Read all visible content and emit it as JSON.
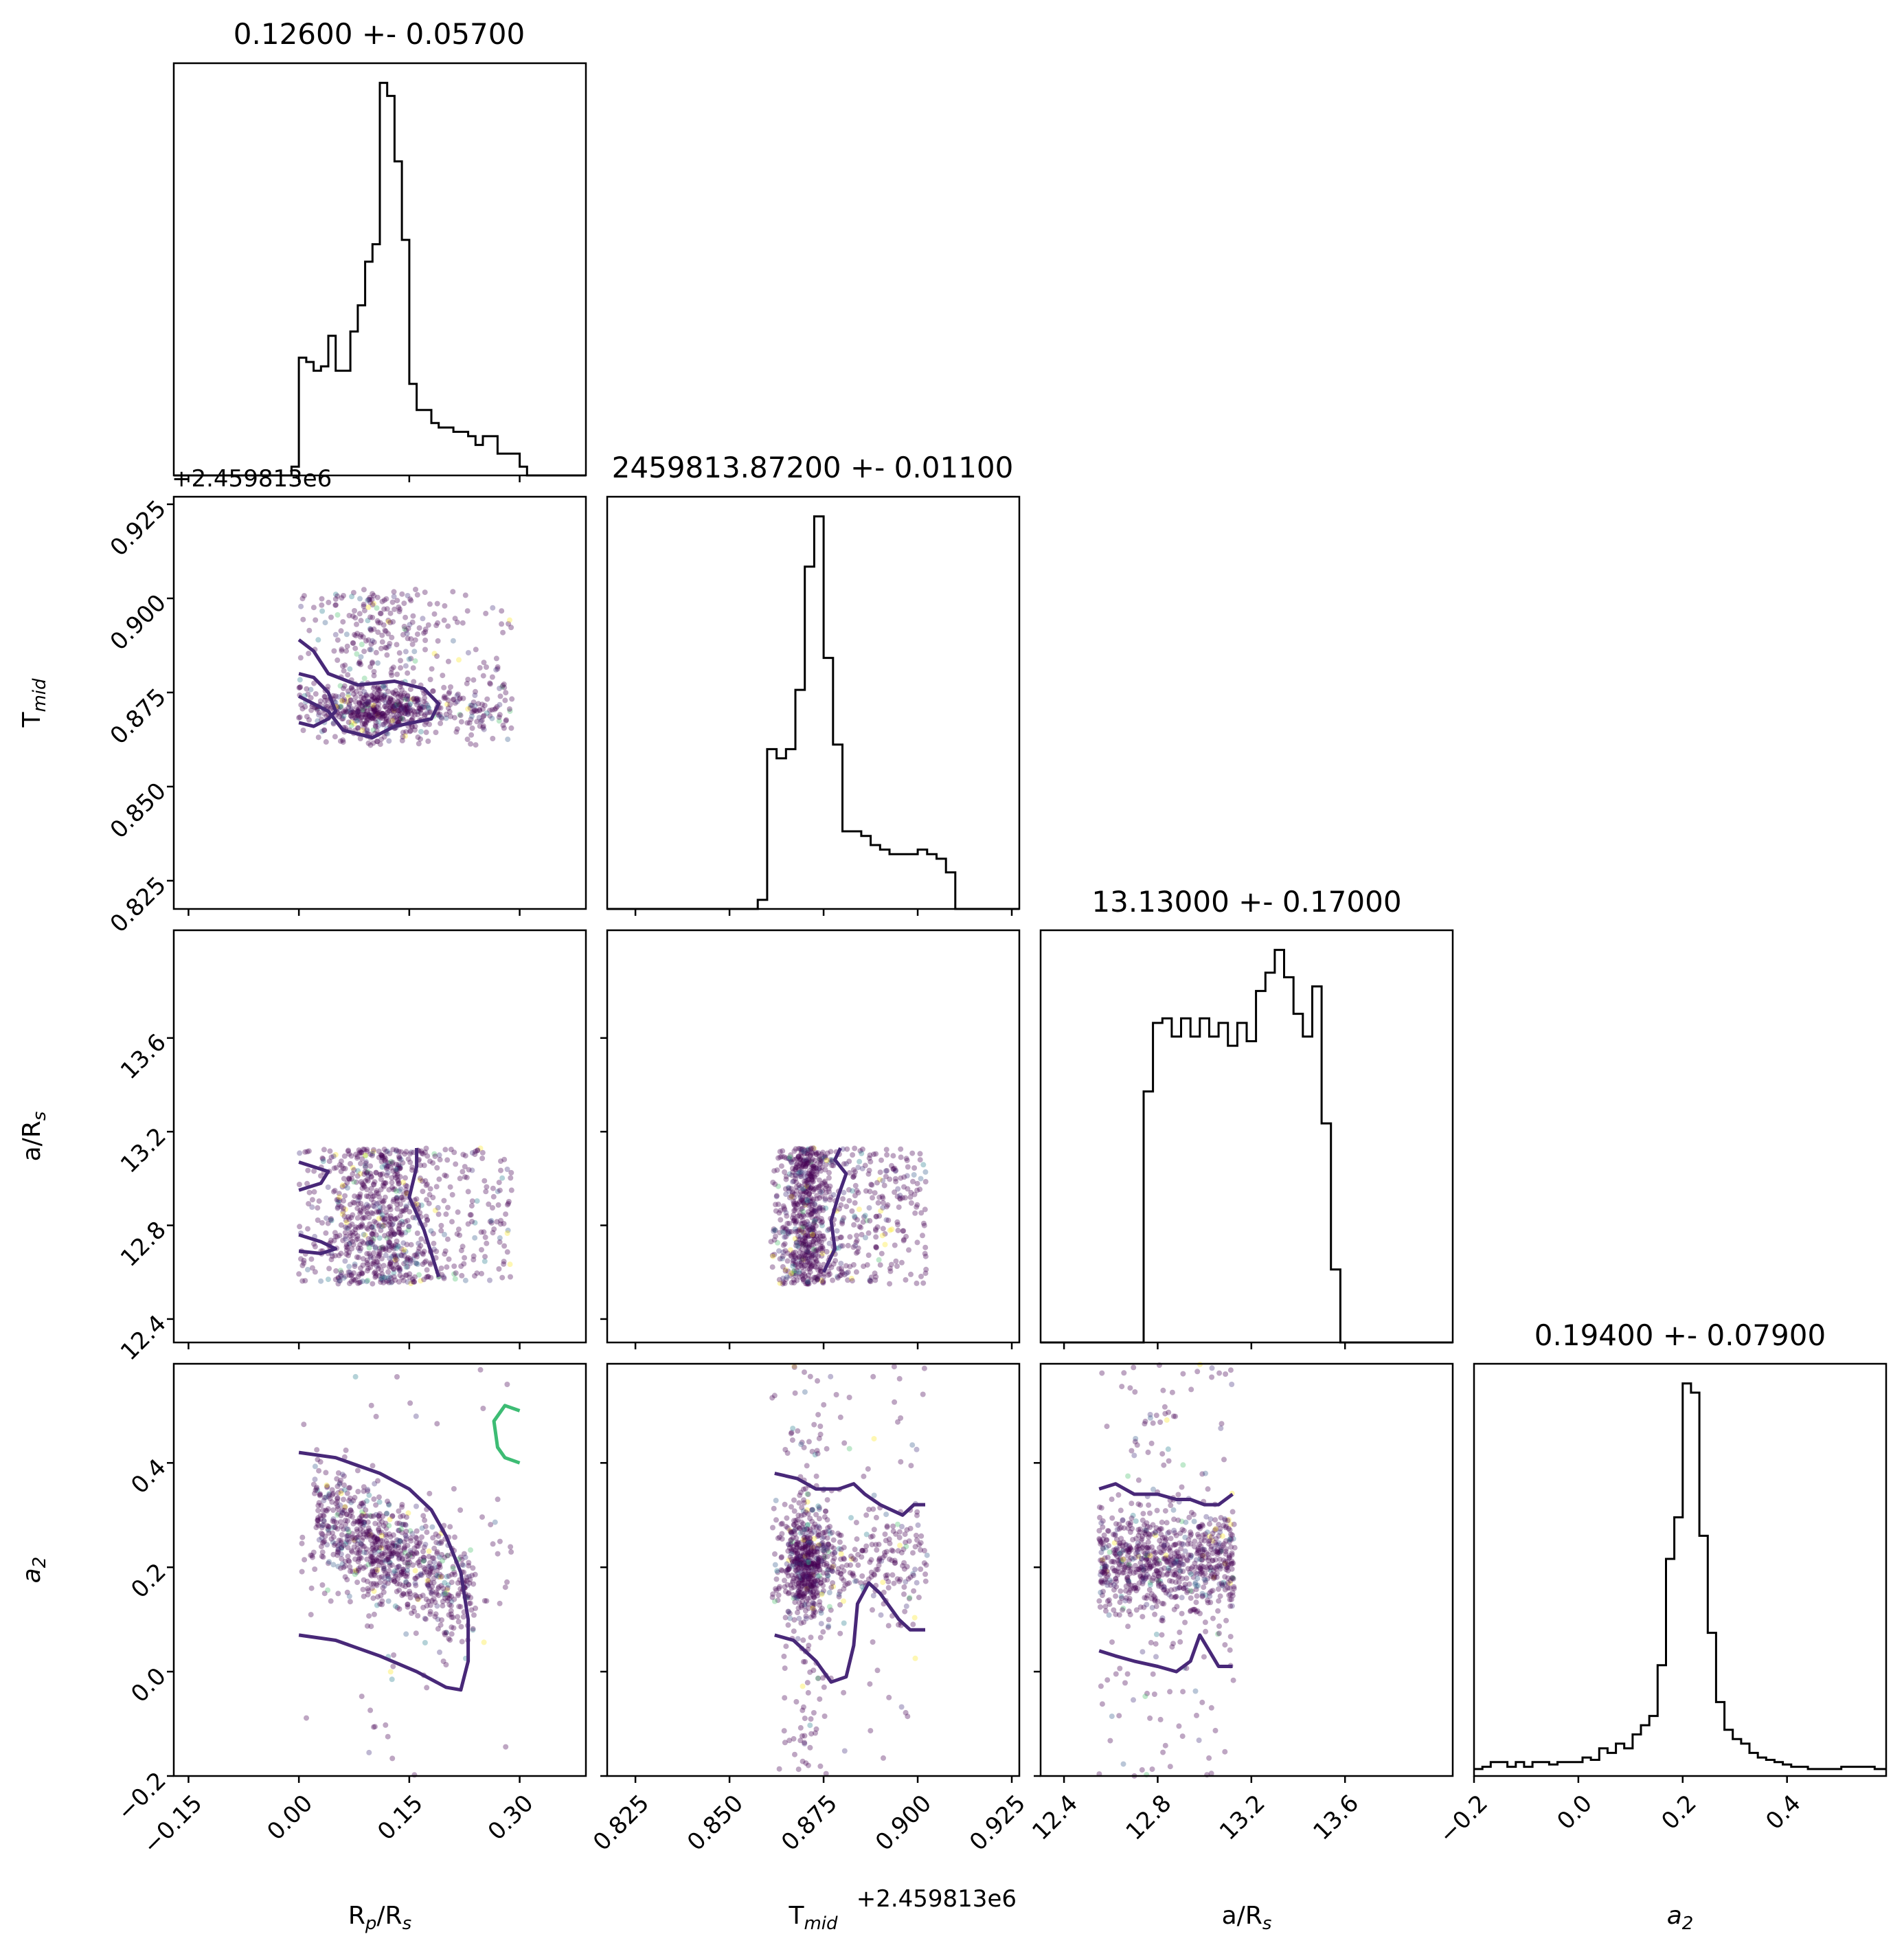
{
  "chart_data": {
    "type": "corner",
    "parameters": [
      {
        "label": "R",
        "sub": "p",
        "suffix": "/R",
        "sub2": "s"
      },
      {
        "label": "T",
        "sub": "mid",
        "suffix": "",
        "sub2": ""
      },
      {
        "label": "a/R",
        "sub": "s",
        "suffix": "",
        "sub2": ""
      },
      {
        "label": "a",
        "sub": "2",
        "suffix": "",
        "sub2": "",
        "italic": true
      }
    ],
    "titles": [
      "0.12600 +- 0.05700",
      "2459813.87200 +- 0.01100",
      "13.13000 +- 0.17000",
      "0.19400 +- 0.07900"
    ],
    "offset_text": "+2.459813e6",
    "ranges": [
      [
        -0.17,
        0.39
      ],
      [
        0.8175,
        0.927
      ],
      [
        12.3,
        14.06
      ],
      [
        -0.2,
        0.59
      ]
    ],
    "ticks": [
      [
        {
          "v": -0.15,
          "t": "−0.15"
        },
        {
          "v": 0.0,
          "t": "0.00"
        },
        {
          "v": 0.15,
          "t": "0.15"
        },
        {
          "v": 0.3,
          "t": "0.30"
        }
      ],
      [
        {
          "v": 0.825,
          "t": "0.825"
        },
        {
          "v": 0.85,
          "t": "0.850"
        },
        {
          "v": 0.875,
          "t": "0.875"
        },
        {
          "v": 0.9,
          "t": "0.900"
        },
        {
          "v": 0.925,
          "t": "0.925"
        }
      ],
      [
        {
          "v": 12.4,
          "t": "12.4"
        },
        {
          "v": 12.8,
          "t": "12.8"
        },
        {
          "v": 13.2,
          "t": "13.2"
        },
        {
          "v": 13.6,
          "t": "13.6"
        }
      ],
      [
        {
          "v": -0.2,
          "t": "−0.2"
        },
        {
          "v": 0.0,
          "t": "0.0"
        },
        {
          "v": 0.2,
          "t": "0.2"
        },
        {
          "v": 0.4,
          "t": "0.4"
        }
      ]
    ],
    "histograms": [
      {
        "bins": [
          -0.17,
          -0.16,
          -0.15,
          -0.14,
          -0.13,
          -0.12,
          -0.11,
          -0.1,
          -0.09,
          -0.08,
          -0.07,
          -0.06,
          -0.05,
          -0.04,
          -0.03,
          -0.02,
          -0.01,
          0.0,
          0.01,
          0.02,
          0.03,
          0.04,
          0.05,
          0.06,
          0.07,
          0.08,
          0.09,
          0.1,
          0.11,
          0.12,
          0.13,
          0.14,
          0.15,
          0.16,
          0.17,
          0.18,
          0.19,
          0.2,
          0.21,
          0.22,
          0.23,
          0.24,
          0.25,
          0.26,
          0.27,
          0.28,
          0.29,
          0.3,
          0.31,
          0.32,
          0.33,
          0.34,
          0.35,
          0.36,
          0.37,
          0.38,
          0.39
        ],
        "counts": [
          0,
          0,
          0,
          0,
          0,
          0,
          0,
          0,
          0,
          0,
          0,
          0,
          0,
          0,
          0,
          0,
          0.02,
          0.27,
          0.26,
          0.24,
          0.25,
          0.32,
          0.24,
          0.24,
          0.33,
          0.39,
          0.49,
          0.53,
          0.9,
          0.87,
          0.72,
          0.54,
          0.21,
          0.15,
          0.15,
          0.12,
          0.11,
          0.11,
          0.1,
          0.1,
          0.09,
          0.07,
          0.09,
          0.09,
          0.05,
          0.05,
          0.05,
          0.02,
          0.0,
          0.0,
          0.0,
          0.0,
          0.0,
          0.0,
          0.0,
          0.0
        ]
      },
      {
        "bins": [
          0.8175,
          0.82,
          0.8225,
          0.825,
          0.8275,
          0.83,
          0.8325,
          0.835,
          0.8375,
          0.84,
          0.8425,
          0.845,
          0.8475,
          0.85,
          0.8525,
          0.855,
          0.8575,
          0.86,
          0.8625,
          0.865,
          0.8675,
          0.87,
          0.8725,
          0.875,
          0.8775,
          0.88,
          0.8825,
          0.885,
          0.8875,
          0.89,
          0.8925,
          0.895,
          0.8975,
          0.9,
          0.9025,
          0.905,
          0.9075,
          0.91,
          0.9125,
          0.915,
          0.9175,
          0.92,
          0.9225,
          0.925,
          0.927
        ],
        "counts": [
          0,
          0,
          0,
          0,
          0,
          0,
          0,
          0,
          0,
          0,
          0,
          0,
          0,
          0,
          0,
          0,
          0.02,
          0.35,
          0.33,
          0.35,
          0.48,
          0.75,
          0.86,
          0.55,
          0.36,
          0.17,
          0.17,
          0.16,
          0.14,
          0.13,
          0.12,
          0.12,
          0.12,
          0.13,
          0.12,
          0.11,
          0.08,
          0.0,
          0.0,
          0.0,
          0.0,
          0.0,
          0.0,
          0.0
        ]
      },
      {
        "bins": [
          12.3,
          12.34,
          12.38,
          12.42,
          12.46,
          12.5,
          12.54,
          12.58,
          12.62,
          12.66,
          12.7,
          12.74,
          12.78,
          12.82,
          12.86,
          12.9,
          12.94,
          12.98,
          13.02,
          13.06,
          13.1,
          13.14,
          13.18,
          13.22,
          13.26,
          13.3,
          13.34,
          13.38,
          13.42,
          13.46,
          13.5,
          13.54,
          13.58,
          13.62,
          13.66,
          13.7,
          13.74,
          13.78,
          13.82,
          13.86,
          13.9,
          13.94,
          13.98,
          14.02,
          14.06
        ],
        "counts": [
          0,
          0,
          0,
          0,
          0,
          0,
          0,
          0,
          0,
          0,
          0,
          0.55,
          0.7,
          0.71,
          0.67,
          0.71,
          0.67,
          0.71,
          0.67,
          0.7,
          0.65,
          0.7,
          0.66,
          0.77,
          0.81,
          0.86,
          0.8,
          0.72,
          0.67,
          0.78,
          0.48,
          0.16,
          0,
          0,
          0,
          0,
          0,
          0,
          0,
          0,
          0,
          0,
          0,
          0
        ]
      },
      {
        "bins": [
          -0.2,
          -0.184,
          -0.168,
          -0.152,
          -0.136,
          -0.12,
          -0.104,
          -0.088,
          -0.072,
          -0.056,
          -0.04,
          -0.024,
          -0.008,
          0.008,
          0.024,
          0.04,
          0.056,
          0.072,
          0.088,
          0.104,
          0.12,
          0.136,
          0.152,
          0.168,
          0.184,
          0.2,
          0.216,
          0.232,
          0.248,
          0.264,
          0.28,
          0.296,
          0.312,
          0.328,
          0.344,
          0.36,
          0.376,
          0.392,
          0.408,
          0.424,
          0.44,
          0.456,
          0.472,
          0.488,
          0.504,
          0.52,
          0.536,
          0.552,
          0.568,
          0.59
        ],
        "counts": [
          0.015,
          0.02,
          0.03,
          0.03,
          0.02,
          0.03,
          0.02,
          0.03,
          0.03,
          0.025,
          0.03,
          0.03,
          0.03,
          0.04,
          0.035,
          0.06,
          0.05,
          0.07,
          0.06,
          0.09,
          0.11,
          0.13,
          0.24,
          0.47,
          0.56,
          0.85,
          0.83,
          0.52,
          0.31,
          0.16,
          0.1,
          0.08,
          0.07,
          0.05,
          0.04,
          0.035,
          0.03,
          0.025,
          0.02,
          0.02,
          0.015,
          0.015,
          0.015,
          0.015,
          0.02,
          0.02,
          0.02,
          0.02,
          0.015
        ]
      }
    ],
    "contours": [
      {
        "row": 1,
        "col": 0,
        "color": "#482878",
        "paths": [
          [
            [
              0.0,
              0.889
            ],
            [
              0.02,
              0.886
            ],
            [
              0.04,
              0.88
            ],
            [
              0.08,
              0.877
            ],
            [
              0.13,
              0.878
            ],
            [
              0.17,
              0.876
            ],
            [
              0.19,
              0.872
            ],
            [
              0.18,
              0.868
            ],
            [
              0.13,
              0.866
            ],
            [
              0.1,
              0.863
            ],
            [
              0.06,
              0.865
            ],
            [
              0.04,
              0.87
            ],
            [
              0.02,
              0.872
            ],
            [
              0.0,
              0.874
            ]
          ],
          [
            [
              0.0,
              0.88
            ],
            [
              0.02,
              0.879
            ],
            [
              0.04,
              0.875
            ],
            [
              0.05,
              0.87
            ],
            [
              0.04,
              0.868
            ],
            [
              0.02,
              0.866
            ],
            [
              0.0,
              0.867
            ]
          ]
        ]
      },
      {
        "row": 2,
        "col": 0,
        "color": "#482878",
        "paths": [
          [
            [
              0.0,
              13.07
            ],
            [
              0.04,
              13.03
            ],
            [
              0.03,
              12.98
            ],
            [
              0.0,
              12.95
            ]
          ],
          [
            [
              0.0,
              12.76
            ],
            [
              0.03,
              12.73
            ],
            [
              0.05,
              12.7
            ],
            [
              0.03,
              12.68
            ],
            [
              0.0,
              12.69
            ]
          ],
          [
            [
              0.16,
              13.13
            ],
            [
              0.16,
              13.05
            ],
            [
              0.15,
              12.92
            ],
            [
              0.17,
              12.78
            ],
            [
              0.19,
              12.58
            ]
          ]
        ]
      },
      {
        "row": 2,
        "col": 1,
        "color": "#482878",
        "paths": [
          [
            [
              0.8795,
              13.13
            ],
            [
              0.878,
              13.08
            ],
            [
              0.881,
              13.02
            ],
            [
              0.879,
              12.93
            ],
            [
              0.877,
              12.82
            ],
            [
              0.878,
              12.7
            ],
            [
              0.875,
              12.6
            ]
          ]
        ]
      },
      {
        "row": 3,
        "col": 0,
        "color": "#482878",
        "paths": [
          [
            [
              0.0,
              0.42
            ],
            [
              0.05,
              0.41
            ],
            [
              0.11,
              0.38
            ],
            [
              0.15,
              0.35
            ],
            [
              0.18,
              0.31
            ],
            [
              0.2,
              0.26
            ],
            [
              0.22,
              0.19
            ],
            [
              0.23,
              0.1
            ],
            [
              0.23,
              0.02
            ],
            [
              0.22,
              -0.035
            ],
            [
              0.2,
              -0.03
            ],
            [
              0.16,
              0.0
            ],
            [
              0.11,
              0.03
            ],
            [
              0.05,
              0.06
            ],
            [
              0.0,
              0.07
            ]
          ]
        ]
      },
      {
        "row": 3,
        "col": 0,
        "color": "#3dbc74",
        "paths": [
          [
            [
              0.3,
              0.5
            ],
            [
              0.28,
              0.51
            ],
            [
              0.265,
              0.48
            ],
            [
              0.27,
              0.43
            ],
            [
              0.28,
              0.41
            ],
            [
              0.3,
              0.4
            ]
          ]
        ]
      },
      {
        "row": 3,
        "col": 1,
        "color": "#482878",
        "paths": [
          [
            [
              0.862,
              0.38
            ],
            [
              0.868,
              0.37
            ],
            [
              0.873,
              0.35
            ],
            [
              0.879,
              0.35
            ],
            [
              0.883,
              0.36
            ],
            [
              0.886,
              0.34
            ],
            [
              0.89,
              0.32
            ],
            [
              0.896,
              0.3
            ],
            [
              0.899,
              0.32
            ],
            [
              0.902,
              0.32
            ]
          ],
          [
            [
              0.862,
              0.07
            ],
            [
              0.867,
              0.06
            ],
            [
              0.873,
              0.02
            ],
            [
              0.877,
              -0.02
            ],
            [
              0.881,
              -0.01
            ],
            [
              0.883,
              0.05
            ],
            [
              0.884,
              0.13
            ],
            [
              0.887,
              0.17
            ],
            [
              0.89,
              0.15
            ],
            [
              0.895,
              0.1
            ],
            [
              0.898,
              0.08
            ],
            [
              0.902,
              0.08
            ]
          ]
        ]
      },
      {
        "row": 3,
        "col": 2,
        "color": "#482878",
        "paths": [
          [
            [
              12.55,
              0.35
            ],
            [
              12.62,
              0.36
            ],
            [
              12.7,
              0.34
            ],
            [
              12.8,
              0.34
            ],
            [
              12.88,
              0.33
            ],
            [
              12.94,
              0.33
            ],
            [
              13.0,
              0.32
            ],
            [
              13.06,
              0.32
            ],
            [
              13.12,
              0.34
            ]
          ],
          [
            [
              12.55,
              0.04
            ],
            [
              12.62,
              0.03
            ],
            [
              12.7,
              0.02
            ],
            [
              12.8,
              0.01
            ],
            [
              12.88,
              0.0
            ],
            [
              12.94,
              0.02
            ],
            [
              12.98,
              0.07
            ],
            [
              13.02,
              0.04
            ],
            [
              13.06,
              0.01
            ],
            [
              13.12,
              0.01
            ]
          ]
        ]
      }
    ],
    "scatter_boxes": [
      [
        0.0,
        0.29,
        0.861,
        0.9025
      ],
      [
        12.55,
        13.13
      ],
      [
        -0.2,
        0.59
      ]
    ]
  }
}
